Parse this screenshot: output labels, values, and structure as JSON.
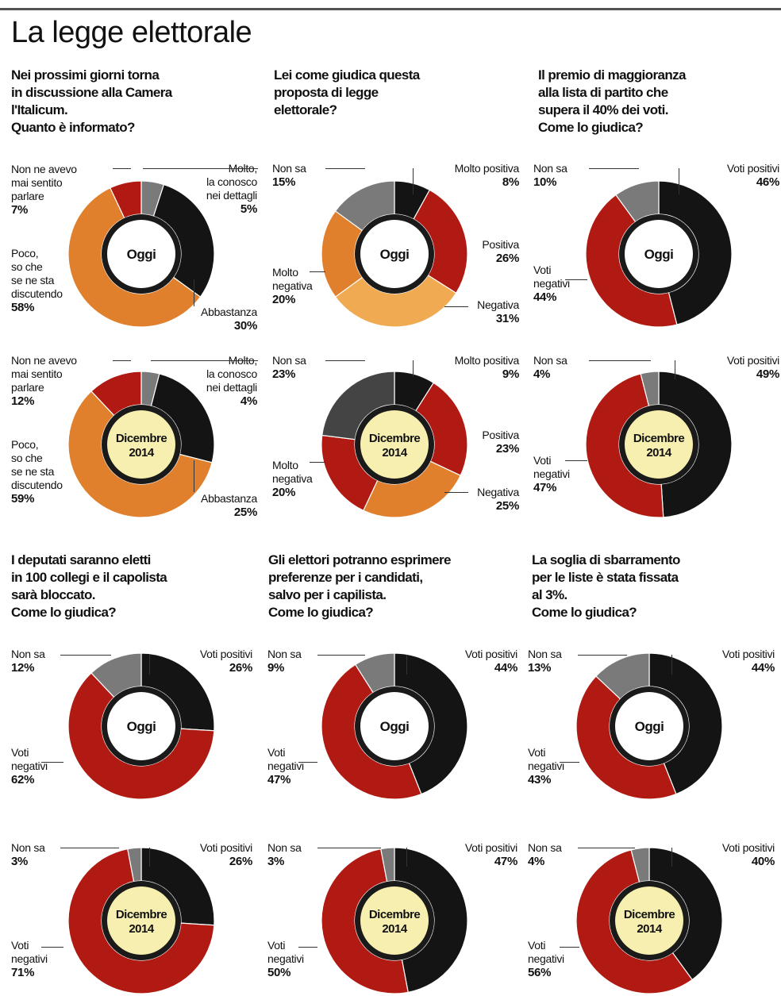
{
  "title": "La legge elettorale",
  "colors": {
    "black": "#141414",
    "red": "#b01a12",
    "orange": "#e07f2c",
    "light_orange": "#efaa52",
    "grey": "#7a7a7a",
    "center_light": "#f6efb0",
    "center_white": "#ffffff"
  },
  "chart_data": [
    {
      "type": "pie",
      "question": "Nei prossimi giorni torna\nin discussione alla Camera\nl'Italicum.\nQuanto è informato?",
      "center_label": "Oggi",
      "slices": [
        {
          "label": "Molto,\nla conosco\nnei dettagli",
          "value": 5,
          "color": "#7a7a7a"
        },
        {
          "label": "Abbastanza",
          "value": 30,
          "color": "#141414"
        },
        {
          "label": "Poco,\nso che\nse ne sta\ndiscutendo",
          "value": 58,
          "color": "#e07f2c"
        },
        {
          "label": "Non ne avevo\nmai sentito\nparlare",
          "value": 7,
          "color": "#b01a12"
        }
      ]
    },
    {
      "type": "pie",
      "question": "",
      "center_label": "Dicembre\n2014",
      "slices": [
        {
          "label": "Molto,\nla conosco\nnei dettagli",
          "value": 4,
          "color": "#7a7a7a"
        },
        {
          "label": "Abbastanza",
          "value": 25,
          "color": "#141414"
        },
        {
          "label": "Poco,\nso che\nse ne sta\ndiscutendo",
          "value": 59,
          "color": "#e07f2c"
        },
        {
          "label": "Non ne avevo\nmai sentito\nparlare",
          "value": 12,
          "color": "#b01a12"
        }
      ]
    },
    {
      "type": "pie",
      "question": "Lei come giudica questa\nproposta di legge\nelettorale?",
      "center_label": "Oggi",
      "slices": [
        {
          "label": "Molto positiva",
          "value": 8,
          "color": "#141414"
        },
        {
          "label": "Positiva",
          "value": 26,
          "color": "#b01a12"
        },
        {
          "label": "Negativa",
          "value": 31,
          "color": "#efaa52"
        },
        {
          "label": "Molto\nnegativa",
          "value": 20,
          "color": "#e07f2c"
        },
        {
          "label": "Non sa",
          "value": 15,
          "color": "#7a7a7a"
        }
      ]
    },
    {
      "type": "pie",
      "question": "",
      "center_label": "Dicembre\n2014",
      "slices": [
        {
          "label": "Molto positiva",
          "value": 9,
          "color": "#141414"
        },
        {
          "label": "Positiva",
          "value": 23,
          "color": "#b01a12"
        },
        {
          "label": "Negativa",
          "value": 25,
          "color": "#e07f2c"
        },
        {
          "label": "Molto\nnegativa",
          "value": 20,
          "color": "#b01a12"
        },
        {
          "label": "Non sa",
          "value": 23,
          "color": "#444444"
        }
      ]
    },
    {
      "type": "pie",
      "question": "Il premio di maggioranza\nalla lista di partito che\nsupera il 40% dei voti.\nCome lo giudica?",
      "center_label": "Oggi",
      "slices": [
        {
          "label": "Voti positivi",
          "value": 46,
          "color": "#141414"
        },
        {
          "label": "Voti\nnegativi",
          "value": 44,
          "color": "#b01a12"
        },
        {
          "label": "Non sa",
          "value": 10,
          "color": "#7a7a7a"
        }
      ]
    },
    {
      "type": "pie",
      "question": "",
      "center_label": "Dicembre\n2014",
      "slices": [
        {
          "label": "Voti positivi",
          "value": 49,
          "color": "#141414"
        },
        {
          "label": "Voti\nnegativi",
          "value": 47,
          "color": "#b01a12"
        },
        {
          "label": "Non sa",
          "value": 4,
          "color": "#7a7a7a"
        }
      ]
    },
    {
      "type": "pie",
      "question": "I deputati saranno eletti\nin 100 collegi e il capolista\nsarà bloccato.\nCome lo giudica?",
      "center_label": "Oggi",
      "slices": [
        {
          "label": "Voti positivi",
          "value": 26,
          "color": "#141414"
        },
        {
          "label": "Voti\nnegativi",
          "value": 62,
          "color": "#b01a12"
        },
        {
          "label": "Non sa",
          "value": 12,
          "color": "#7a7a7a"
        }
      ]
    },
    {
      "type": "pie",
      "question": "",
      "center_label": "Dicembre\n2014",
      "slices": [
        {
          "label": "Voti positivi",
          "value": 26,
          "color": "#141414"
        },
        {
          "label": "Voti\nnegativi",
          "value": 71,
          "color": "#b01a12"
        },
        {
          "label": "Non sa",
          "value": 3,
          "color": "#7a7a7a"
        }
      ]
    },
    {
      "type": "pie",
      "question": "Gli elettori potranno esprimere\npreferenze per i candidati,\nsalvo per i capilista.\nCome lo giudica?",
      "center_label": "Oggi",
      "slices": [
        {
          "label": "Voti positivi",
          "value": 44,
          "color": "#141414"
        },
        {
          "label": "Voti\nnegativi",
          "value": 47,
          "color": "#b01a12"
        },
        {
          "label": "Non sa",
          "value": 9,
          "color": "#7a7a7a"
        }
      ]
    },
    {
      "type": "pie",
      "question": "",
      "center_label": "Dicembre\n2014",
      "slices": [
        {
          "label": "Voti positivi",
          "value": 47,
          "color": "#141414"
        },
        {
          "label": "Voti\nnegativi",
          "value": 50,
          "color": "#b01a12"
        },
        {
          "label": "Non sa",
          "value": 3,
          "color": "#7a7a7a"
        }
      ]
    },
    {
      "type": "pie",
      "question": "La soglia di sbarramento\nper le liste è stata fissata\nal 3%.\nCome lo giudica?",
      "center_label": "Oggi",
      "slices": [
        {
          "label": "Voti positivi",
          "value": 44,
          "color": "#141414"
        },
        {
          "label": "Voti\nnegativi",
          "value": 43,
          "color": "#b01a12"
        },
        {
          "label": "Non sa",
          "value": 13,
          "color": "#7a7a7a"
        }
      ]
    },
    {
      "type": "pie",
      "question": "",
      "center_label": "Dicembre\n2014",
      "slices": [
        {
          "label": "Voti positivi",
          "value": 40,
          "color": "#141414"
        },
        {
          "label": "Voti\nnegativi",
          "value": 56,
          "color": "#b01a12"
        },
        {
          "label": "Non sa",
          "value": 4,
          "color": "#7a7a7a"
        }
      ]
    }
  ]
}
